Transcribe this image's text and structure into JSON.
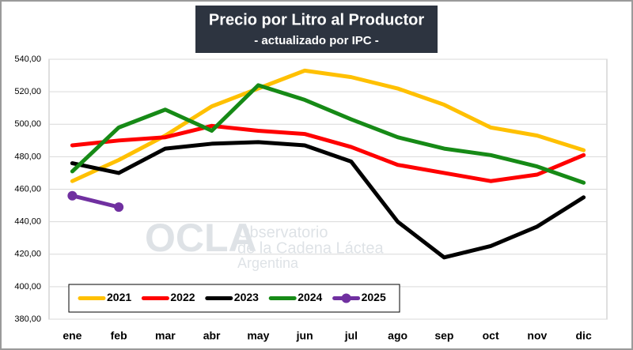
{
  "chart_data": {
    "type": "line",
    "title": "Precio por Litro al Productor",
    "subtitle": "- actualizado por IPC -",
    "watermark": [
      "OCLA",
      "Observatorio",
      "de la Cadena Láctea",
      "Argentina"
    ],
    "categories": [
      "ene",
      "feb",
      "mar",
      "abr",
      "may",
      "jun",
      "jul",
      "ago",
      "sep",
      "oct",
      "nov",
      "dic"
    ],
    "series": [
      {
        "name": "2021",
        "color": "#ffc000",
        "values": [
          465,
          478,
          493,
          511,
          522,
          533,
          529,
          522,
          512,
          498,
          493,
          484
        ]
      },
      {
        "name": "2022",
        "color": "#ff0000",
        "values": [
          487,
          490,
          492,
          499,
          496,
          494,
          486,
          475,
          470,
          465,
          469,
          481
        ]
      },
      {
        "name": "2023",
        "color": "#000000",
        "values": [
          476,
          470,
          485,
          488,
          489,
          487,
          477,
          440,
          418,
          425,
          437,
          455
        ]
      },
      {
        "name": "2024",
        "color": "#168a16",
        "values": [
          471,
          498,
          509,
          496,
          524,
          515,
          503,
          492,
          485,
          481,
          474,
          464
        ]
      },
      {
        "name": "2025",
        "color": "#7030a0",
        "values": [
          456,
          449,
          null,
          null,
          null,
          null,
          null,
          null,
          null,
          null,
          null,
          null
        ],
        "markers": true
      }
    ],
    "ylim": [
      380,
      540
    ],
    "yticks": [
      {
        "value": 380,
        "label": "380,00"
      },
      {
        "value": 400,
        "label": "400,00"
      },
      {
        "value": 420,
        "label": "420,00"
      },
      {
        "value": 440,
        "label": "440,00"
      },
      {
        "value": 460,
        "label": "460,00"
      },
      {
        "value": 480,
        "label": "480,00"
      },
      {
        "value": 500,
        "label": "500,00"
      },
      {
        "value": 520,
        "label": "520,00"
      },
      {
        "value": 540,
        "label": "540,00"
      }
    ],
    "grid": true,
    "legend": "bottom-left"
  }
}
